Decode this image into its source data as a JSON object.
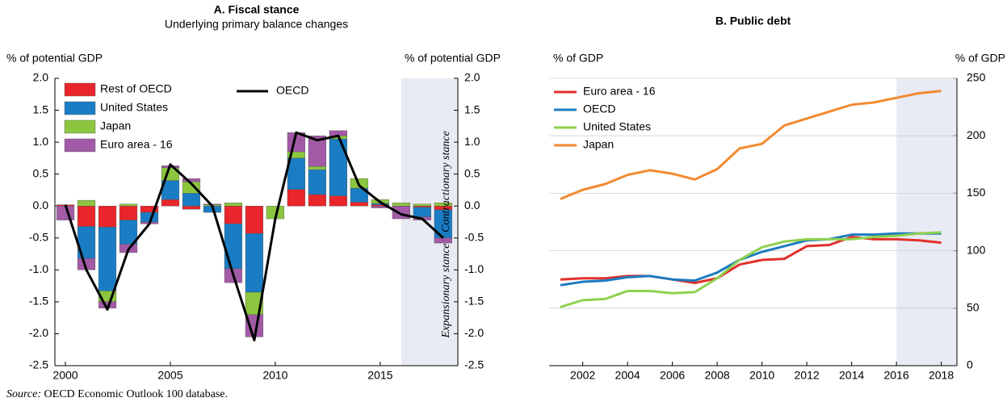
{
  "chart_data": [
    {
      "type": "bar",
      "stacked": true,
      "title": "A. Fiscal stance",
      "subtitle": "Underlying primary balance changes",
      "ylabel": "% of potential GDP",
      "y2label": "% of potential GDP",
      "annotations": [
        "Contractionary stance",
        "Expansionary stance"
      ],
      "x": [
        2000,
        2001,
        2002,
        2003,
        2004,
        2005,
        2006,
        2007,
        2008,
        2009,
        2010,
        2011,
        2012,
        2013,
        2014,
        2015,
        2016,
        2017,
        2018
      ],
      "xlim": [
        1999.5,
        2018.7
      ],
      "xticks": [
        2000,
        2005,
        2010,
        2015
      ],
      "ylim": [
        -2.5,
        2
      ],
      "yticks": [
        -2.5,
        {
          "value": -2,
          "label": "-2.0"
        },
        -1.5,
        {
          "value": -1,
          "label": "-1.0"
        },
        -0.5,
        {
          "value": 0,
          "label": "0.0"
        },
        0.5,
        {
          "value": 1,
          "label": "1.0"
        },
        1.5,
        {
          "value": 2,
          "label": "2.0"
        }
      ],
      "y2lim": [
        -2.5,
        2
      ],
      "y2ticks": [
        -2.5,
        {
          "value": -2,
          "label": "-2.0"
        },
        -1.5,
        {
          "value": -1,
          "label": "-1.0"
        },
        -0.5,
        {
          "value": 0,
          "label": "0.0"
        },
        0.5,
        {
          "value": 1,
          "label": "1.0"
        },
        1.5,
        {
          "value": 2,
          "label": "2.0"
        }
      ],
      "shaded_from": 2016,
      "series": [
        {
          "name": "Rest of OECD",
          "color": "#e8262b",
          "values": [
            0.02,
            -0.32,
            -0.33,
            -0.22,
            -0.1,
            0.1,
            -0.05,
            0,
            -0.28,
            -0.43,
            0,
            0.26,
            0.18,
            0.16,
            0.06,
            0.02,
            0,
            -0.02,
            -0.06
          ]
        },
        {
          "name": "United States",
          "color": "#1a7dc4",
          "values": [
            0,
            -0.5,
            -1.0,
            -0.38,
            -0.15,
            0.3,
            0.2,
            -0.1,
            -0.7,
            -0.92,
            0,
            0.49,
            0.39,
            0.89,
            0.22,
            0.02,
            0,
            -0.15,
            -0.44
          ]
        },
        {
          "name": "Japan",
          "color": "#8cc63f",
          "values": [
            0,
            0.09,
            -0.17,
            0.03,
            0,
            0.2,
            0.18,
            0.02,
            0.05,
            -0.35,
            -0.2,
            0.1,
            0.05,
            0.05,
            0.15,
            0.06,
            0.05,
            0.03,
            0.05
          ]
        },
        {
          "name": "Euro area - 16",
          "color": "#a25aa6",
          "values": [
            -0.22,
            -0.18,
            -0.1,
            -0.13,
            -0.03,
            0.03,
            0.05,
            0.01,
            -0.22,
            -0.35,
            0,
            0.3,
            0.48,
            0.08,
            0,
            -0.03,
            -0.2,
            -0.05,
            -0.08
          ]
        },
        {
          "name": "OECD",
          "type": "line",
          "color": "#000000",
          "values": [
            0.02,
            -1.0,
            -1.62,
            -0.68,
            -0.28,
            0.65,
            0.35,
            0,
            -1.08,
            -2.1,
            -0.2,
            1.15,
            1.03,
            1.1,
            0.32,
            0.06,
            -0.13,
            -0.2,
            -0.5
          ]
        }
      ]
    },
    {
      "type": "line",
      "title": "B. Public debt",
      "ylabel": "% of GDP",
      "y2label": "% of GDP",
      "x": [
        2001,
        2002,
        2003,
        2004,
        2005,
        2006,
        2007,
        2008,
        2009,
        2010,
        2011,
        2012,
        2013,
        2014,
        2015,
        2016,
        2017,
        2018
      ],
      "xlim": [
        2000.5,
        2018.7
      ],
      "xticks": [
        2002,
        2004,
        2006,
        2008,
        2010,
        2012,
        2014,
        2016,
        2018
      ],
      "y2lim": [
        0,
        250
      ],
      "y2ticks": [
        0,
        50,
        100,
        150,
        200,
        250
      ],
      "grid": true,
      "shaded_from": 2016,
      "series": [
        {
          "name": "Euro area - 16",
          "color": "#e2302d",
          "axis": "y2",
          "values": [
            75,
            76,
            76,
            78,
            78,
            75,
            72,
            76,
            88,
            92,
            93,
            104,
            105,
            112,
            110,
            110,
            109,
            107
          ]
        },
        {
          "name": "OECD",
          "color": "#1b7bc0",
          "axis": "y2",
          "values": [
            70,
            73,
            74,
            77,
            78,
            75,
            74,
            81,
            92,
            99,
            104,
            109,
            110,
            114,
            114,
            115,
            115,
            115
          ]
        },
        {
          "name": "United States",
          "color": "#8fd14f",
          "axis": "y2",
          "values": [
            51,
            57,
            58,
            65,
            65,
            63,
            64,
            76,
            92,
            103,
            108,
            110,
            110,
            110,
            112,
            113,
            115,
            116
          ]
        },
        {
          "name": "Japan",
          "color": "#f28a30",
          "axis": "y2",
          "values": [
            145,
            153,
            158,
            166,
            170,
            167,
            162,
            171,
            189,
            193,
            209,
            215,
            221,
            227,
            229,
            233,
            237,
            239
          ]
        }
      ]
    }
  ],
  "source_label": "Source:",
  "source": "OECD Economic Outlook 100 database."
}
